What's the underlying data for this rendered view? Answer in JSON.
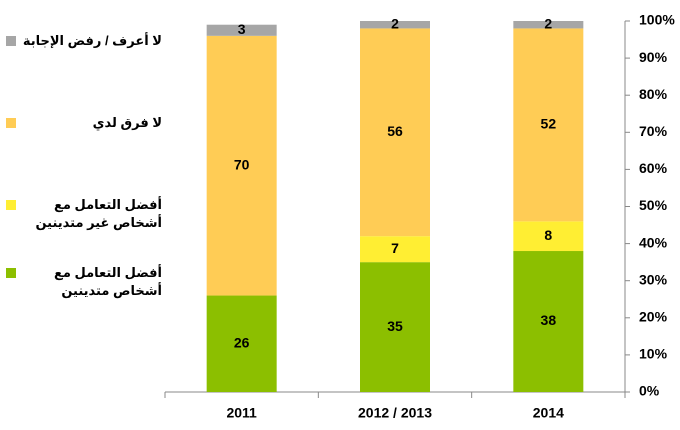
{
  "chart_data": {
    "type": "stacked-bar",
    "categories": [
      "2011",
      "2012 / 2013",
      "2014"
    ],
    "series": [
      {
        "name": "أفضل التعامل مع أشخاص متدينين",
        "color": "#8cbf00",
        "values": [
          26,
          35,
          38
        ]
      },
      {
        "name": "أفضل التعامل مع أشخاص غير متدينين",
        "color": "#ffee33",
        "values": [
          null,
          7,
          8
        ]
      },
      {
        "name": "لا فرق لدي",
        "color": "#ffcc55",
        "values": [
          70,
          56,
          52
        ]
      },
      {
        "name": "لا أعرف / رفض الإجابة",
        "color": "#a6a6a6",
        "values": [
          3,
          2,
          2
        ]
      }
    ],
    "ylim": [
      0,
      100
    ],
    "yticks": [
      {
        "value": 0,
        "label": "0%"
      },
      {
        "value": 10,
        "label": "10%"
      },
      {
        "value": 20,
        "label": "20%"
      },
      {
        "value": 30,
        "label": "30%"
      },
      {
        "value": 40,
        "label": "40%"
      },
      {
        "value": 50,
        "label": "50%"
      },
      {
        "value": 60,
        "label": "60%"
      },
      {
        "value": 70,
        "label": "70%"
      },
      {
        "value": 80,
        "label": "80%"
      },
      {
        "value": 90,
        "label": "90%"
      },
      {
        "value": 100,
        "label": "100%"
      }
    ],
    "grid": false
  }
}
